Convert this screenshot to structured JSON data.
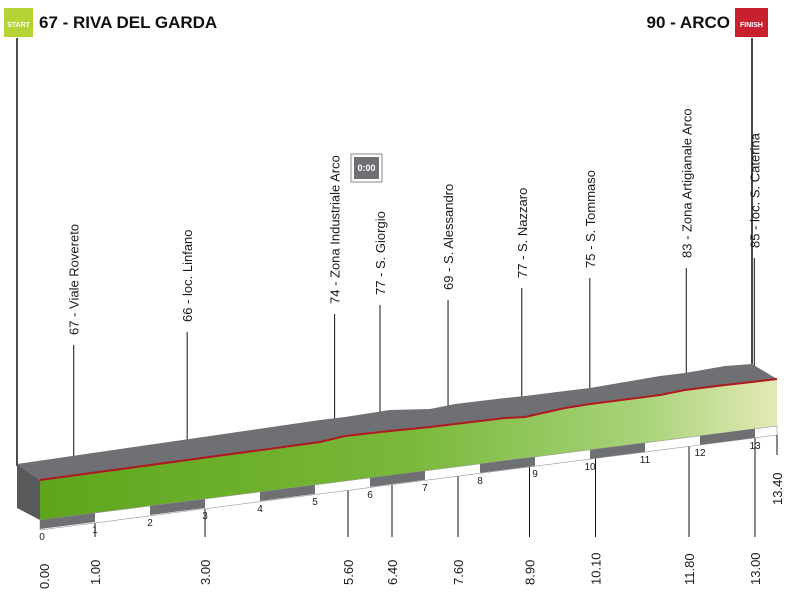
{
  "header": {
    "start_badge": "START",
    "start_label": "67 - RIVA DEL GARDA",
    "finish_badge": "FINISH",
    "finish_label": "90 - ARCO"
  },
  "time_badge": "0:00",
  "colors": {
    "start_badge": "#b5d334",
    "finish_badge": "#c8202f",
    "road_top": "#6f7073",
    "front_green": "#63a81f",
    "profile_line": "#b0191f"
  },
  "chart_data": {
    "type": "area",
    "xlabel": "",
    "ylabel": "",
    "xlim": [
      0,
      13.4
    ],
    "km_ticks": [
      "0",
      "1",
      "2",
      "3",
      "4",
      "5",
      "6",
      "7",
      "8",
      "9",
      "10",
      "11",
      "12",
      "13"
    ],
    "waypoints": [
      {
        "km": 1.0,
        "km_label": "1.00",
        "altitude": 67,
        "name": "Viale Rovereto"
      },
      {
        "km": 3.0,
        "km_label": "3.00",
        "altitude": 66,
        "name": "loc. Linfano"
      },
      {
        "km": 5.6,
        "km_label": "5.60",
        "altitude": 74,
        "name": "Zona Industriale Arco"
      },
      {
        "km": 6.4,
        "km_label": "6.40",
        "altitude": 77,
        "name": "S. Giorgio"
      },
      {
        "km": 7.6,
        "km_label": "7.60",
        "altitude": 69,
        "name": "S. Alessandro"
      },
      {
        "km": 8.9,
        "km_label": "8.90",
        "altitude": 77,
        "name": "S. Nazzaro"
      },
      {
        "km": 10.1,
        "km_label": "10.10",
        "altitude": 75,
        "name": "S. Tommaso"
      },
      {
        "km": 11.8,
        "km_label": "11.80",
        "altitude": 83,
        "name": "Zona Artigianale Arco"
      },
      {
        "km": 13.0,
        "km_label": "13.00",
        "altitude": 85,
        "name": "loc. S. Caterina"
      }
    ],
    "start": {
      "km": 0.0,
      "km_label": "0.00",
      "altitude": 67
    },
    "finish": {
      "km": 13.4,
      "km_label": "13.40",
      "altitude": 90
    }
  }
}
